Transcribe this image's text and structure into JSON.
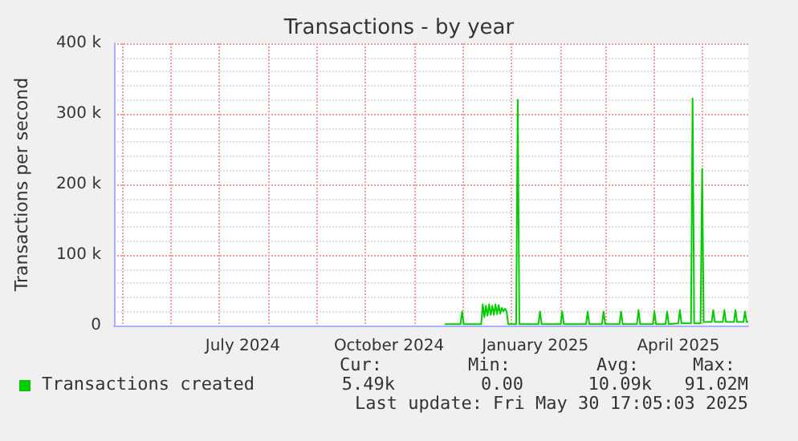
{
  "chart_data": {
    "type": "line",
    "title": "Transactions - by year",
    "ylabel": "Transactions per second",
    "x": [
      "2024-11-20",
      "2024-11-30",
      "2024-12-01",
      "2024-12-02",
      "2024-12-13",
      "2024-12-14",
      "2024-12-15",
      "2024-12-16",
      "2024-12-17",
      "2024-12-18",
      "2024-12-19",
      "2024-12-20",
      "2024-12-21",
      "2024-12-22",
      "2024-12-23",
      "2024-12-24",
      "2024-12-25",
      "2024-12-26",
      "2024-12-27",
      "2024-12-28",
      "2024-12-29",
      "2024-12-30",
      "2025-01-04",
      "2025-01-05",
      "2025-01-06",
      "2025-01-18",
      "2025-01-19",
      "2025-01-20",
      "2025-02-01",
      "2025-02-02",
      "2025-02-03",
      "2025-02-17",
      "2025-02-18",
      "2025-02-19",
      "2025-02-27",
      "2025-02-28",
      "2025-03-01",
      "2025-03-10",
      "2025-03-11",
      "2025-03-12",
      "2025-03-21",
      "2025-03-22",
      "2025-03-23",
      "2025-03-31",
      "2025-04-01",
      "2025-04-02",
      "2025-04-08",
      "2025-04-09",
      "2025-04-10",
      "2025-04-16",
      "2025-04-17",
      "2025-04-18",
      "2025-04-24",
      "2025-04-25",
      "2025-04-26",
      "2025-04-30",
      "2025-05-01",
      "2025-05-02",
      "2025-05-07",
      "2025-05-08",
      "2025-05-09",
      "2025-05-14",
      "2025-05-15",
      "2025-05-16",
      "2025-05-21",
      "2025-05-22",
      "2025-05-23",
      "2025-05-27",
      "2025-05-28",
      "2025-05-29",
      "2025-05-30"
    ],
    "series": [
      {
        "name": "Transactions created",
        "color": "#00cc00",
        "values": [
          2000,
          2000,
          20000,
          2000,
          2000,
          30000,
          12000,
          28000,
          14000,
          30000,
          15000,
          28000,
          15000,
          30000,
          16000,
          29000,
          17000,
          25000,
          20000,
          24000,
          20000,
          2000,
          2000,
          320000,
          2000,
          2000,
          20000,
          2000,
          2000,
          20000,
          2000,
          2000,
          20000,
          2000,
          2000,
          20000,
          2000,
          2000,
          20000,
          2000,
          2000,
          22000,
          2000,
          2000,
          20000,
          2000,
          2000,
          20000,
          2000,
          3000,
          22000,
          3000,
          3000,
          322000,
          3000,
          3000,
          222000,
          5000,
          5000,
          22000,
          5000,
          5000,
          22000,
          5000,
          5000,
          22000,
          5000,
          5000,
          20000,
          5000,
          5000
        ]
      }
    ],
    "xlim": [
      "2024-04-26",
      "2025-05-30"
    ],
    "xticks": [
      {
        "value": "2024-05-01",
        "label": null
      },
      {
        "value": "2024-06-01",
        "label": null
      },
      {
        "value": "2024-07-01",
        "label": null
      },
      {
        "value": "2024-07-16",
        "label": "July 2024"
      },
      {
        "value": "2024-08-01",
        "label": null
      },
      {
        "value": "2024-09-01",
        "label": null
      },
      {
        "value": "2024-10-01",
        "label": null
      },
      {
        "value": "2024-10-16",
        "label": "October 2024"
      },
      {
        "value": "2024-11-01",
        "label": null
      },
      {
        "value": "2024-12-01",
        "label": null
      },
      {
        "value": "2025-01-01",
        "label": null
      },
      {
        "value": "2025-01-16",
        "label": "January 2025"
      },
      {
        "value": "2025-02-01",
        "label": null
      },
      {
        "value": "2025-03-01",
        "label": null
      },
      {
        "value": "2025-04-01",
        "label": null
      },
      {
        "value": "2025-04-16",
        "label": "April 2025"
      },
      {
        "value": "2025-05-01",
        "label": null
      }
    ],
    "ylim": [
      0,
      400000
    ],
    "yticks": [
      0,
      {
        "value": 100000,
        "label": "100 k"
      },
      {
        "value": 200000,
        "label": "200 k"
      },
      {
        "value": 300000,
        "label": "300 k"
      },
      {
        "value": 400000,
        "label": "400 k"
      }
    ],
    "grid": true,
    "legend": "bottom left",
    "marker": "none",
    "line_style": "solid",
    "annotations": [
      "Cur:",
      "Min:",
      "Avg:",
      "Max:",
      "5.49k",
      "0.00",
      "10.09k",
      "91.02M",
      "Last update: Fri May 30 17:05:03 2025"
    ]
  }
}
